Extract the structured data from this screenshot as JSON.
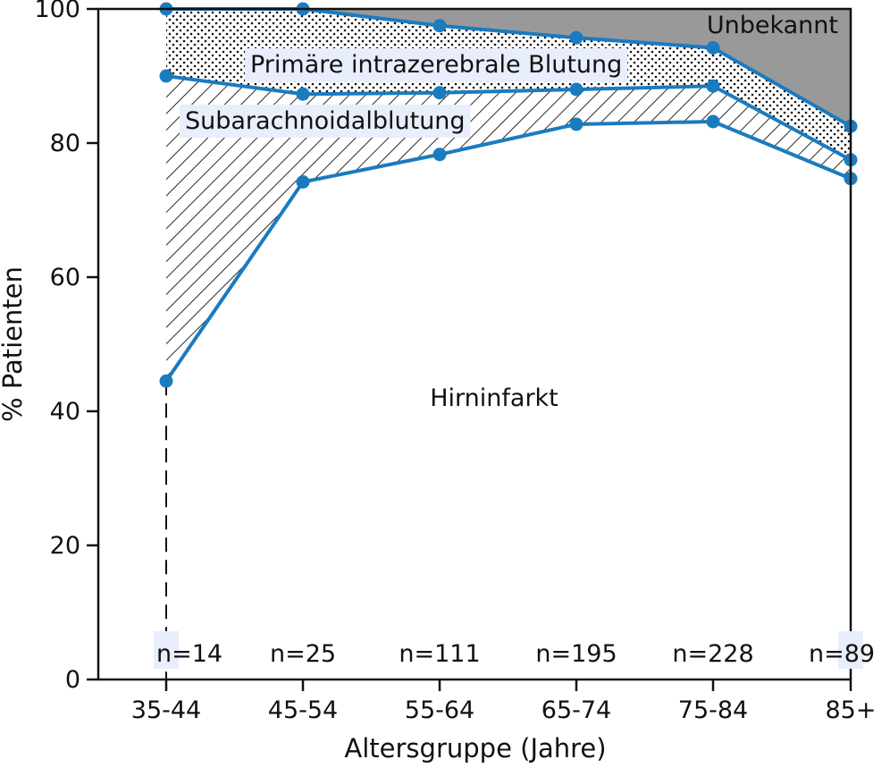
{
  "chart_data": {
    "type": "area",
    "title": "",
    "xlabel": "Altersgruppe (Jahre)",
    "ylabel": "% Patienten",
    "ylim": [
      0,
      100
    ],
    "yticks": [
      "0",
      "20",
      "40",
      "60",
      "80",
      "100"
    ],
    "categories": [
      "35-44",
      "45-54",
      "55-64",
      "65-74",
      "75-84",
      "85+"
    ],
    "series": [
      {
        "name": "Hirninfarkt",
        "cumulative_top": [
          44.5,
          74.2,
          78.3,
          82.8,
          83.2,
          74.7
        ]
      },
      {
        "name": "Subarachnoidalblutung",
        "cumulative_top": [
          90.0,
          87.3,
          87.5,
          88.0,
          88.5,
          77.5
        ]
      },
      {
        "name": "Primäre intrazerebrale Blutung",
        "cumulative_top": [
          100.0,
          100.0,
          97.5,
          95.7,
          94.2,
          82.5
        ]
      },
      {
        "name": "Unbekannt",
        "cumulative_top": [
          100.0,
          100.0,
          100.0,
          100.0,
          100.0,
          100.0
        ]
      }
    ],
    "sample_sizes": [
      "n=14",
      "n=25",
      "n=111",
      "n=195",
      "n=228",
      "n=89"
    ],
    "grid": false,
    "colors": {
      "line": "#1a7bbf",
      "unknown_fill": "#999999",
      "hatch": "#111111",
      "label_bg": "#e8eefb"
    }
  }
}
